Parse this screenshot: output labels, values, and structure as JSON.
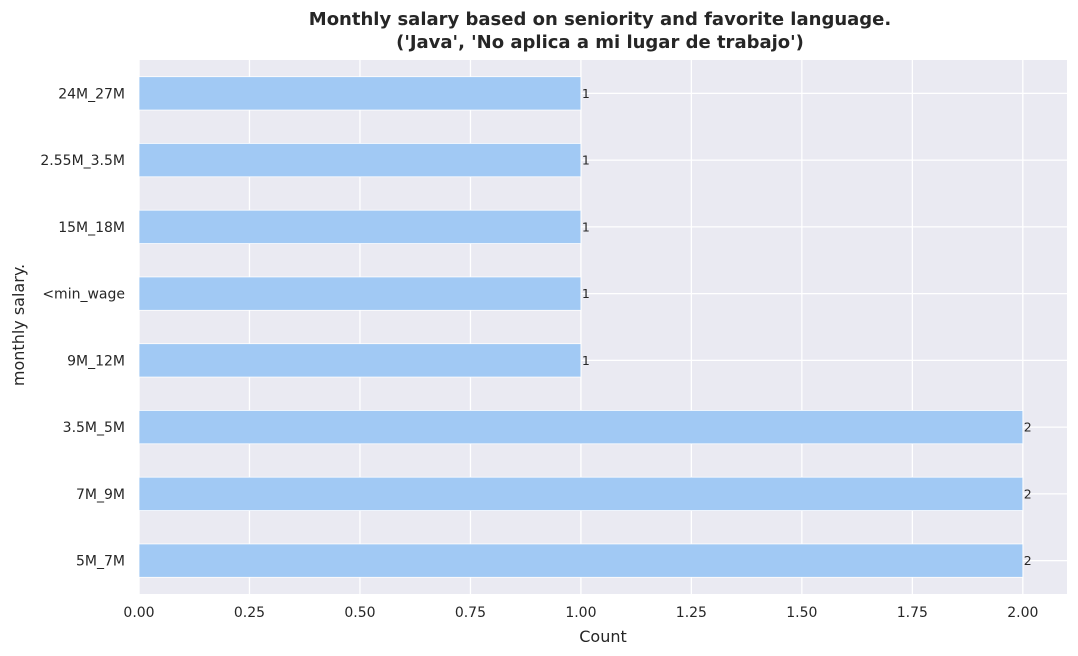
{
  "chart_data": {
    "type": "bar",
    "orientation": "horizontal",
    "title_line1": "Monthly salary based on seniority and favorite language.",
    "title_line2": "('Java', 'No aplica a mi lugar de trabajo')",
    "xlabel": "Count",
    "ylabel": "monthly salary.",
    "categories": [
      "24M_27M",
      "2.55M_3.5M",
      "15M_18M",
      "<min_wage",
      "9M_12M",
      "3.5M_5M",
      "7M_9M",
      "5M_7M"
    ],
    "values": [
      1,
      1,
      1,
      1,
      1,
      2,
      2,
      2
    ],
    "data_labels": [
      "1",
      "1",
      "1",
      "1",
      "1",
      "2",
      "2",
      "2"
    ],
    "xlim": [
      0,
      2.1
    ],
    "xticks": [
      0.0,
      0.25,
      0.5,
      0.75,
      1.0,
      1.25,
      1.5,
      1.75,
      2.0
    ],
    "xtick_labels": [
      "0.00",
      "0.25",
      "0.50",
      "0.75",
      "1.00",
      "1.25",
      "1.50",
      "1.75",
      "2.00"
    ],
    "grid": true,
    "bar_color": "#a1c9f4",
    "background_color": "#eaeaf2",
    "grid_color": "#ffffff"
  }
}
